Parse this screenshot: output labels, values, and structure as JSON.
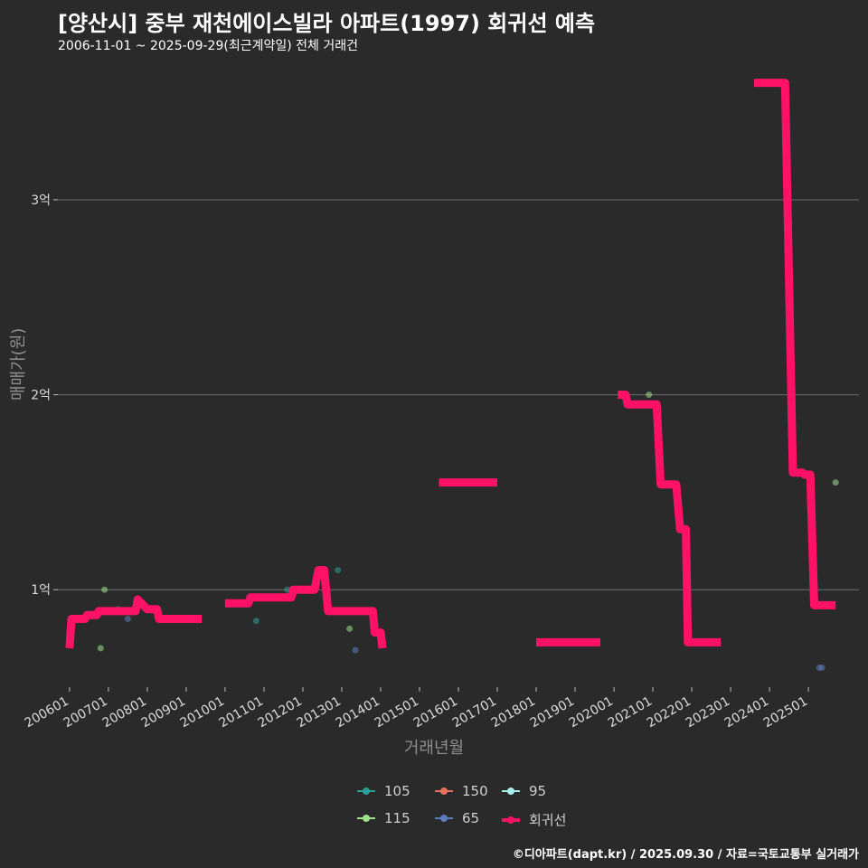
{
  "header": {
    "title": "[양산시] 중부 재천에이스빌라 아파트(1997) 회귀선 예측",
    "subtitle": "2006-11-01 ~ 2025-09-29(최근계약일) 전체 거래건"
  },
  "caption": "©디아파트(dapt.kr) / 2025.09.30 / 자료=국토교통부 실거래가",
  "colors": {
    "background": "#2b2a2b",
    "grid": "#6e6e6e",
    "regression": "#ff1166",
    "s105": "#2aa198",
    "s115": "#9be28a",
    "s150": "#e8705f",
    "s65": "#5d7bbf",
    "s95": "#a8f0f0"
  },
  "chart_data": {
    "type": "scatter",
    "title": "[양산시] 중부 재천에이스빌라 아파트(1997) 회귀선 예측",
    "xlabel": "거래년월",
    "ylabel": "매매가(원)",
    "ylim": [
      0.5,
      3.7
    ],
    "xlim": [
      2005.7,
      2026.3
    ],
    "y_ticks": [
      {
        "value": 1,
        "label": "1억"
      },
      {
        "value": 2,
        "label": "2억"
      },
      {
        "value": 3,
        "label": "3억"
      }
    ],
    "x_ticks": [
      {
        "value": 2006.0,
        "label": "200601"
      },
      {
        "value": 2007.0,
        "label": "200701"
      },
      {
        "value": 2008.0,
        "label": "200801"
      },
      {
        "value": 2009.0,
        "label": "200901"
      },
      {
        "value": 2010.0,
        "label": "201001"
      },
      {
        "value": 2011.0,
        "label": "201101"
      },
      {
        "value": 2012.0,
        "label": "201201"
      },
      {
        "value": 2013.0,
        "label": "201301"
      },
      {
        "value": 2014.0,
        "label": "201401"
      },
      {
        "value": 2015.0,
        "label": "201501"
      },
      {
        "value": 2016.0,
        "label": "201601"
      },
      {
        "value": 2017.0,
        "label": "201701"
      },
      {
        "value": 2018.0,
        "label": "201801"
      },
      {
        "value": 2019.0,
        "label": "201901"
      },
      {
        "value": 2020.0,
        "label": "202001"
      },
      {
        "value": 2021.0,
        "label": "202101"
      },
      {
        "value": 2022.0,
        "label": "202201"
      },
      {
        "value": 2023.0,
        "label": "202301"
      },
      {
        "value": 2024.0,
        "label": "202401"
      },
      {
        "value": 2025.0,
        "label": "202501"
      }
    ],
    "legend": {
      "position": "bottom",
      "items": [
        {
          "label": "105",
          "color_key": "s105"
        },
        {
          "label": "150",
          "color_key": "s150"
        },
        {
          "label": "95",
          "color_key": "s95"
        },
        {
          "label": "115",
          "color_key": "s115"
        },
        {
          "label": "65",
          "color_key": "s65"
        },
        {
          "label": "회귀선",
          "color_key": "regression"
        }
      ]
    },
    "series": [
      {
        "name": "105",
        "color_key": "s105",
        "points": [
          [
            2007.25,
            0.9
          ],
          [
            2011.6,
            1.0
          ],
          [
            2012.9,
            1.1
          ],
          [
            2010.8,
            0.84
          ]
        ]
      },
      {
        "name": "115",
        "color_key": "s115",
        "points": [
          [
            2006.8,
            0.7
          ],
          [
            2006.9,
            1.0
          ],
          [
            2013.2,
            0.8
          ],
          [
            2020.9,
            2.0
          ],
          [
            2025.7,
            1.55
          ]
        ]
      },
      {
        "name": "150",
        "color_key": "s150",
        "points": []
      },
      {
        "name": "65",
        "color_key": "s65",
        "points": [
          [
            2007.5,
            0.85
          ],
          [
            2013.35,
            0.69
          ],
          [
            2025.28,
            0.6
          ],
          [
            2025.35,
            0.6
          ]
        ]
      },
      {
        "name": "95",
        "color_key": "s95",
        "points": []
      }
    ],
    "regression_segments": [
      [
        [
          2006.0,
          0.7
        ],
        [
          2006.05,
          0.85
        ],
        [
          2006.4,
          0.85
        ],
        [
          2006.45,
          0.87
        ],
        [
          2006.7,
          0.87
        ],
        [
          2006.75,
          0.89
        ],
        [
          2007.7,
          0.89
        ],
        [
          2007.75,
          0.95
        ],
        [
          2007.9,
          0.92
        ],
        [
          2008.0,
          0.9
        ],
        [
          2008.25,
          0.9
        ],
        [
          2008.3,
          0.85
        ],
        [
          2009.4,
          0.85
        ]
      ],
      [
        [
          2010.0,
          0.93
        ],
        [
          2010.6,
          0.93
        ],
        [
          2010.65,
          0.96
        ],
        [
          2011.7,
          0.96
        ],
        [
          2011.75,
          1.0
        ],
        [
          2012.3,
          1.0
        ],
        [
          2012.4,
          1.1
        ],
        [
          2012.55,
          1.1
        ],
        [
          2012.65,
          0.89
        ],
        [
          2013.8,
          0.89
        ],
        [
          2013.85,
          0.78
        ],
        [
          2014.0,
          0.78
        ],
        [
          2014.05,
          0.7
        ]
      ],
      [
        [
          2015.5,
          1.55
        ],
        [
          2017.0,
          1.55
        ]
      ],
      [
        [
          2018.0,
          0.73
        ],
        [
          2019.65,
          0.73
        ]
      ],
      [
        [
          2020.1,
          2.0
        ],
        [
          2020.3,
          2.0
        ],
        [
          2020.35,
          1.95
        ],
        [
          2021.1,
          1.95
        ],
        [
          2021.2,
          1.54
        ],
        [
          2021.6,
          1.54
        ],
        [
          2021.7,
          1.31
        ],
        [
          2021.85,
          1.31
        ],
        [
          2021.9,
          0.73
        ],
        [
          2022.75,
          0.73
        ]
      ],
      [
        [
          2023.6,
          3.6
        ],
        [
          2024.4,
          3.6
        ],
        [
          2024.5,
          2.6
        ],
        [
          2024.6,
          1.6
        ],
        [
          2024.85,
          1.6
        ],
        [
          2024.9,
          1.59
        ],
        [
          2025.05,
          1.59
        ],
        [
          2025.15,
          0.92
        ],
        [
          2025.7,
          0.92
        ]
      ]
    ]
  }
}
